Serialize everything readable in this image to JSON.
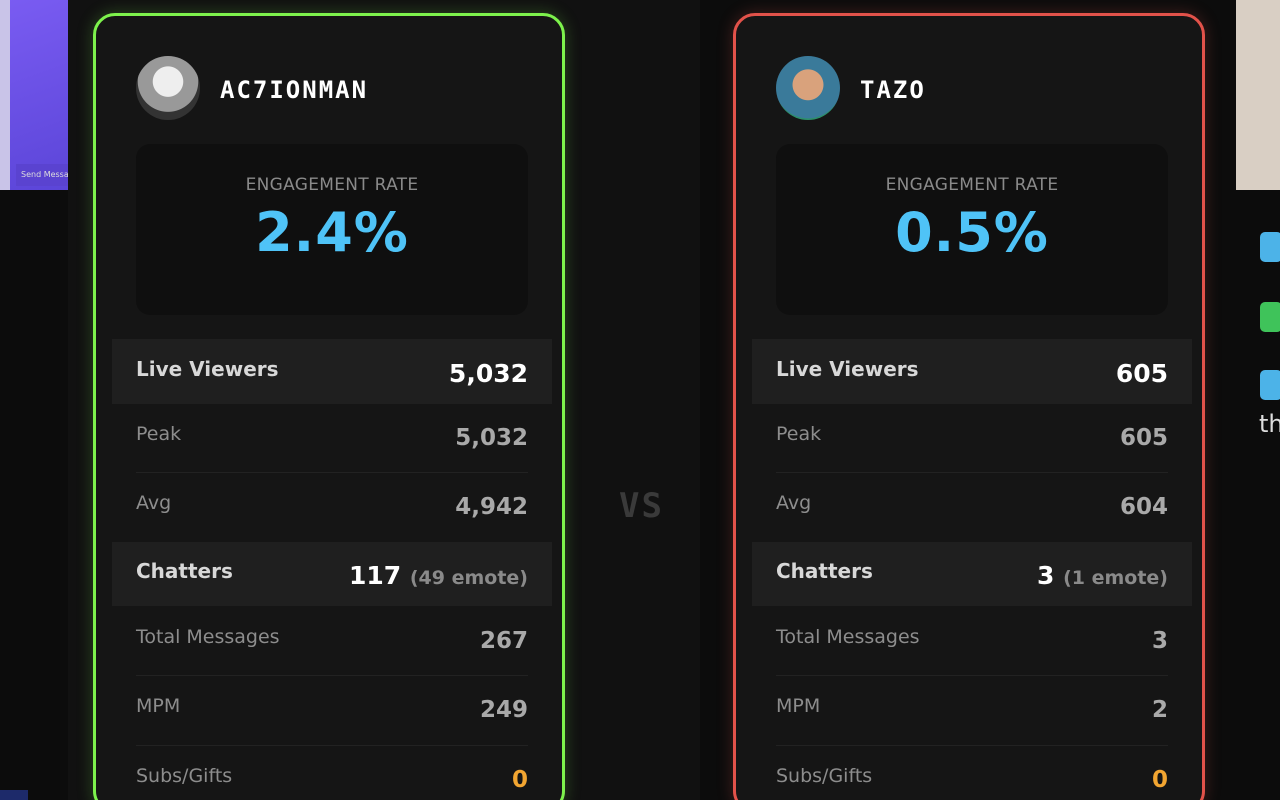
{
  "left_panel": {
    "button": "Send Message"
  },
  "vs": "VS",
  "cards": [
    {
      "name": "AC7IONMAN",
      "engagement_label": "ENGAGEMENT RATE",
      "engagement_value": "2.4%",
      "stats": [
        {
          "label": "Live Viewers",
          "value": "5,032"
        },
        {
          "label": "Peak",
          "value": "5,032"
        },
        {
          "label": "Avg",
          "value": "4,942"
        },
        {
          "label": "Chatters",
          "value": "117",
          "note": "(49 emote)"
        },
        {
          "label": "Total Messages",
          "value": "267"
        },
        {
          "label": "MPM",
          "value": "249"
        },
        {
          "label": "Subs/Gifts",
          "value": "0"
        }
      ]
    },
    {
      "name": "TAZO",
      "engagement_label": "ENGAGEMENT RATE",
      "engagement_value": "0.5%",
      "stats": [
        {
          "label": "Live Viewers",
          "value": "605"
        },
        {
          "label": "Peak",
          "value": "605"
        },
        {
          "label": "Avg",
          "value": "604"
        },
        {
          "label": "Chatters",
          "value": "3",
          "note": "(1 emote)"
        },
        {
          "label": "Total Messages",
          "value": "3"
        },
        {
          "label": "MPM",
          "value": "2"
        },
        {
          "label": "Subs/Gifts",
          "value": "0"
        }
      ]
    }
  ],
  "right_panel": {
    "text": "th"
  }
}
